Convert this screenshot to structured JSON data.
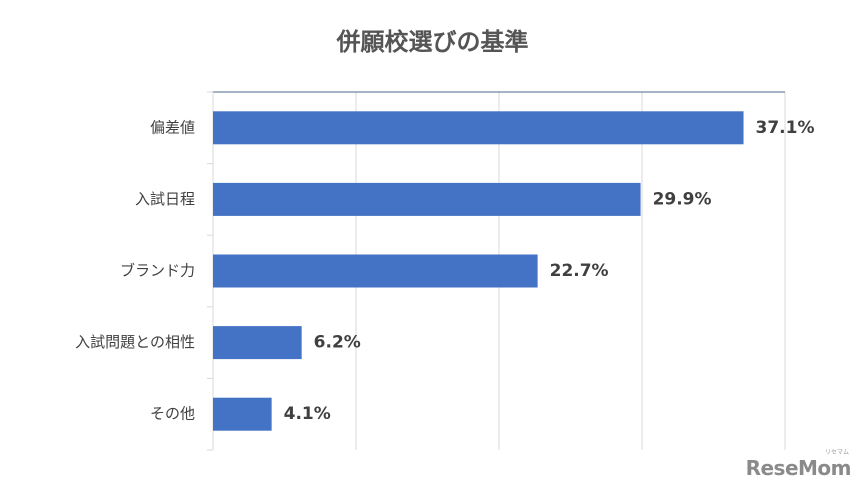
{
  "chart_data": {
    "type": "bar",
    "orientation": "horizontal",
    "title": "併願校選びの基準",
    "categories": [
      "偏差値",
      "入試日程",
      "ブランド力",
      "入試問題との相性",
      "その他"
    ],
    "values": [
      37.1,
      29.9,
      22.7,
      6.2,
      4.1
    ],
    "value_labels": [
      "37.1%",
      "29.9%",
      "22.7%",
      "6.2%",
      "4.1%"
    ],
    "xlim": [
      0,
      40
    ],
    "unit": "%",
    "grid": true,
    "legend": "none",
    "bar_color": "#4472C4"
  },
  "watermark": {
    "text": "ReseMom",
    "sub": "リセマム"
  }
}
